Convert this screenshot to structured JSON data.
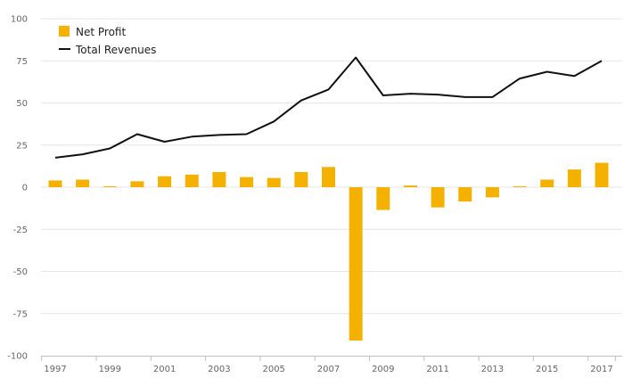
{
  "chart_data": {
    "type": "bar+line",
    "x": [
      "1997",
      "1998",
      "1999",
      "2000",
      "2001",
      "2002",
      "2003",
      "2004",
      "2005",
      "2006",
      "2007",
      "2008",
      "2009",
      "2010",
      "2011",
      "2012",
      "2013",
      "2014",
      "2015",
      "2016",
      "2017"
    ],
    "x_tick_labels": [
      "1997",
      "1999",
      "2001",
      "2003",
      "2005",
      "2007",
      "2009",
      "2011",
      "2013",
      "2015",
      "2017"
    ],
    "ylim": [
      -100,
      100
    ],
    "y_ticks": [
      100,
      75,
      50,
      25,
      0,
      -25,
      -50,
      -75,
      -100
    ],
    "grid": true,
    "legend_position": "top-left",
    "series": [
      {
        "name": "Net Profit",
        "type": "bar",
        "color": "#F5B100",
        "values": [
          4,
          4.5,
          0.5,
          3.5,
          6.5,
          7.5,
          9,
          6,
          5.5,
          9,
          12,
          -91,
          -13.5,
          1,
          -12,
          -8.5,
          -6,
          0.5,
          4.5,
          10.5,
          14.5
        ]
      },
      {
        "name": "Total Revenues",
        "type": "line",
        "color": "#111111",
        "values": [
          17.5,
          19.5,
          23,
          31.5,
          27,
          30,
          31,
          31.5,
          39,
          51.5,
          58,
          77,
          54.5,
          55.5,
          55,
          53.5,
          53.5,
          64.5,
          68.5,
          66,
          75
        ]
      }
    ]
  }
}
